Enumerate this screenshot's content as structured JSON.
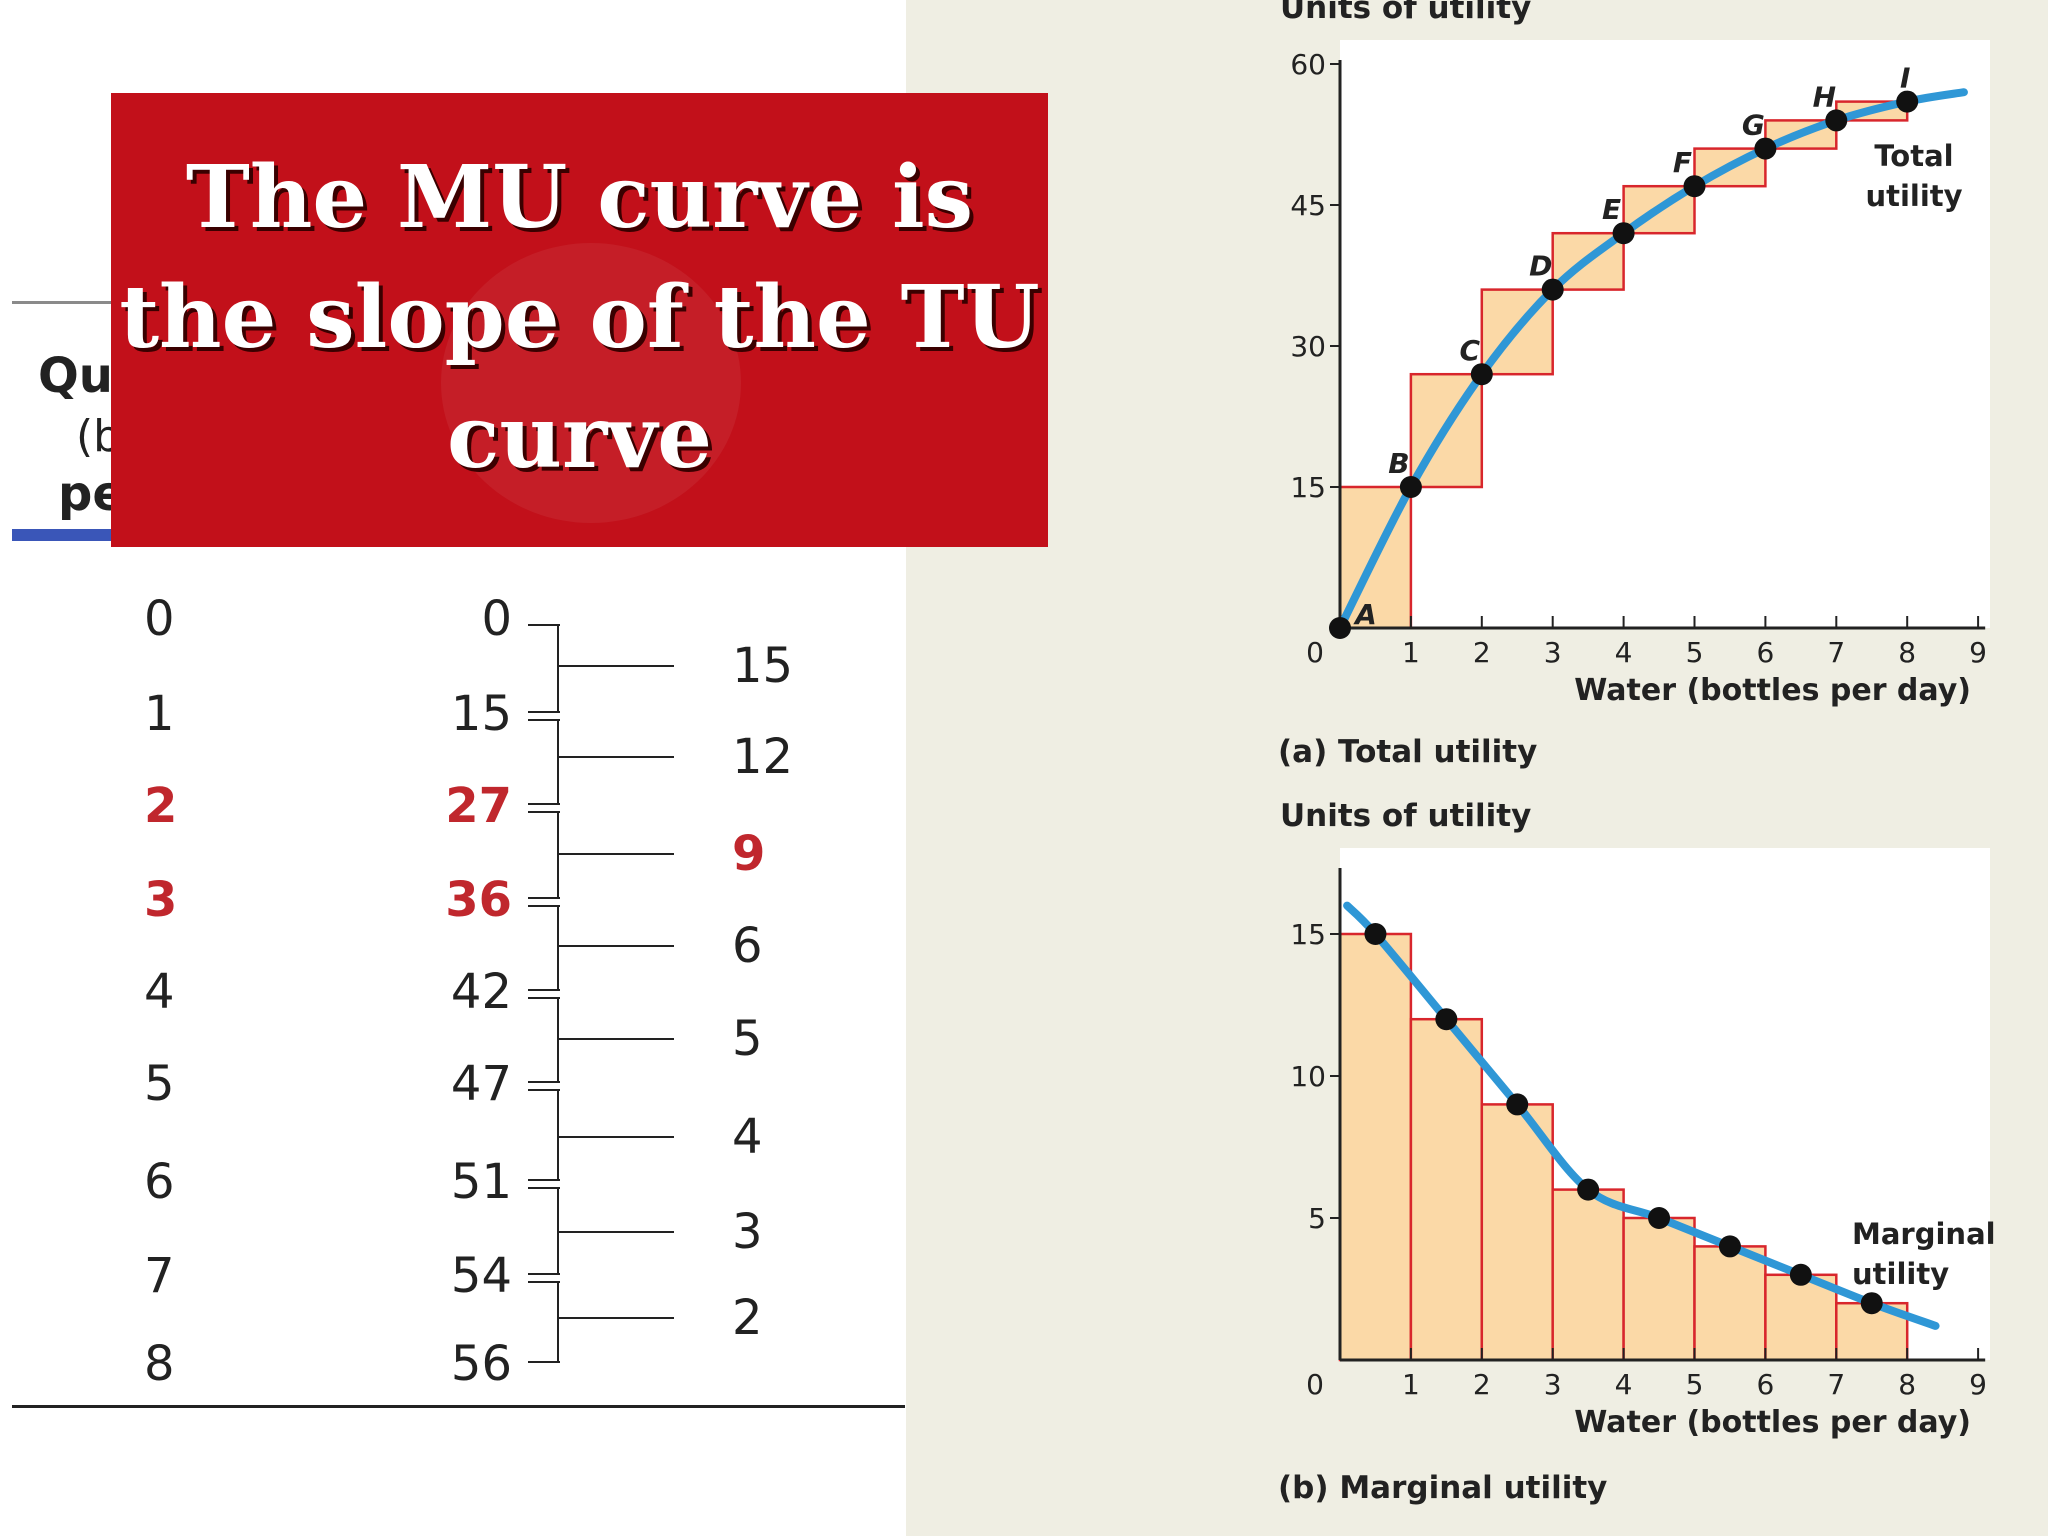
{
  "banner": {
    "title": "The MU curve is the slope of the TU curve"
  },
  "table": {
    "header_fragments": [
      "Qu",
      "(b",
      "pe"
    ],
    "quantity": [
      "0",
      "1",
      "2",
      "3",
      "4",
      "5",
      "6",
      "7",
      "8"
    ],
    "total_utility": [
      "0",
      "15",
      "27",
      "36",
      "42",
      "47",
      "51",
      "54",
      "56"
    ],
    "marginal_utility": [
      "15",
      "12",
      "9",
      "6",
      "5",
      "4",
      "3",
      "2"
    ],
    "highlight_rows": [
      2,
      3
    ],
    "highlight_mu_index": 2
  },
  "colors": {
    "banner": "#c2101a",
    "highlight": "#c0272d",
    "curve": "#2f97d6",
    "bar_fill": "#fbd9a7",
    "bar_stroke": "#d8262c",
    "panel_bg": "#efeee3",
    "rule_blue": "#3a56b8"
  },
  "chart_data": [
    {
      "type": "line",
      "caption": "(a) Total utility",
      "ylabel": "Units of utility",
      "xlabel": "Water (bottles per day)",
      "origin_label": "0",
      "x_ticks": [
        1,
        2,
        3,
        4,
        5,
        6,
        7,
        8,
        9
      ],
      "y_ticks": [
        15,
        30,
        45,
        60
      ],
      "xlim": [
        0,
        9
      ],
      "ylim": [
        0,
        60
      ],
      "points": [
        {
          "label": "A",
          "x": 0,
          "y": 0
        },
        {
          "label": "B",
          "x": 1,
          "y": 15
        },
        {
          "label": "C",
          "x": 2,
          "y": 27
        },
        {
          "label": "D",
          "x": 3,
          "y": 36
        },
        {
          "label": "E",
          "x": 4,
          "y": 42
        },
        {
          "label": "F",
          "x": 5,
          "y": 47
        },
        {
          "label": "G",
          "x": 6,
          "y": 51
        },
        {
          "label": "H",
          "x": 7,
          "y": 54
        },
        {
          "label": "I",
          "x": 8,
          "y": 56
        }
      ],
      "curve_end": {
        "x": 8.8,
        "y": 57
      },
      "curve_label": [
        "Total",
        "utility"
      ],
      "steps": true
    },
    {
      "type": "line",
      "caption": "(b) Marginal utility",
      "ylabel": "Units of utility",
      "xlabel": "Water (bottles per day)",
      "origin_label": "0",
      "x_ticks": [
        1,
        2,
        3,
        4,
        5,
        6,
        7,
        8,
        9
      ],
      "y_ticks": [
        5,
        10,
        15
      ],
      "xlim": [
        0,
        9
      ],
      "ylim": [
        0,
        17
      ],
      "bars": [
        15,
        12,
        9,
        6,
        5,
        4,
        3,
        2
      ],
      "points": [
        {
          "x": 0.5,
          "y": 15
        },
        {
          "x": 1.5,
          "y": 12
        },
        {
          "x": 2.5,
          "y": 9
        },
        {
          "x": 3.5,
          "y": 6
        },
        {
          "x": 4.5,
          "y": 5
        },
        {
          "x": 5.5,
          "y": 4
        },
        {
          "x": 6.5,
          "y": 3
        },
        {
          "x": 7.5,
          "y": 2
        }
      ],
      "curve_start": {
        "x": 0.1,
        "y": 16
      },
      "curve_end": {
        "x": 8.4,
        "y": 1.2
      },
      "curve_label": [
        "Marginal",
        "utility"
      ]
    }
  ]
}
